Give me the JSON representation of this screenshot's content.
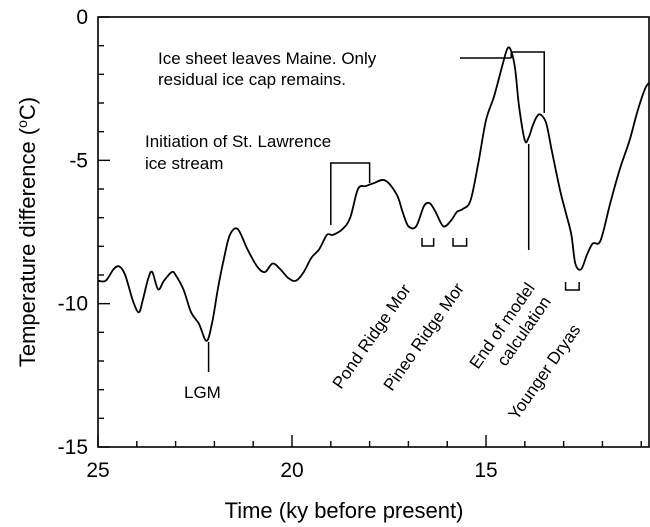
{
  "chart_data": {
    "type": "line",
    "xlabel": "Time (ky before present)",
    "ylabel_main": "Temperature difference (",
    "ylabel_sup": "o",
    "ylabel_tail": "C)",
    "xlim": [
      25,
      10.8
    ],
    "ylim": [
      -15,
      0
    ],
    "xticks": [
      {
        "value": 25,
        "label": "25"
      },
      {
        "value": 20,
        "label": "20"
      },
      {
        "value": 15,
        "label": "15"
      }
    ],
    "yticks": [
      {
        "value": 0,
        "label": "0"
      },
      {
        "value": -5,
        "label": "-5"
      },
      {
        "value": -10,
        "label": "-10"
      },
      {
        "value": -15,
        "label": "-15"
      }
    ],
    "series": [
      {
        "color": "#000000",
        "x": [
          25.0,
          24.8,
          24.6,
          24.45,
          24.3,
          24.1,
          23.95,
          23.85,
          23.7,
          23.6,
          23.45,
          23.3,
          23.1,
          23.0,
          22.8,
          22.6,
          22.4,
          22.2,
          22.05,
          21.9,
          21.75,
          21.6,
          21.4,
          21.15,
          20.9,
          20.7,
          20.5,
          20.3,
          20.1,
          19.9,
          19.7,
          19.5,
          19.3,
          19.1,
          18.95,
          18.7,
          18.5,
          18.3,
          18.1,
          17.9,
          17.6,
          17.3,
          17.15,
          17.0,
          16.8,
          16.6,
          16.45,
          16.3,
          16.1,
          15.9,
          15.75,
          15.6,
          15.4,
          15.2,
          15.0,
          14.8,
          14.6,
          14.45,
          14.35,
          14.25,
          14.15,
          14.0,
          13.9,
          13.8,
          13.7,
          13.6,
          13.45,
          13.3,
          13.1,
          12.95,
          12.8,
          12.7,
          12.55,
          12.4,
          12.25,
          12.05,
          11.8,
          11.55,
          11.3,
          11.1,
          10.9,
          10.8
        ],
        "y": [
          -9.2,
          -9.2,
          -8.8,
          -8.7,
          -9.0,
          -9.9,
          -10.3,
          -9.9,
          -9.1,
          -8.9,
          -9.5,
          -9.2,
          -8.9,
          -9.0,
          -9.5,
          -10.3,
          -10.7,
          -11.3,
          -10.6,
          -9.4,
          -8.4,
          -7.6,
          -7.4,
          -8.1,
          -8.7,
          -8.9,
          -8.6,
          -8.8,
          -9.1,
          -9.2,
          -8.9,
          -8.4,
          -8.1,
          -7.6,
          -7.6,
          -7.4,
          -7.0,
          -6.0,
          -5.9,
          -5.8,
          -5.7,
          -6.2,
          -6.8,
          -7.3,
          -7.3,
          -6.6,
          -6.5,
          -6.8,
          -7.3,
          -7.1,
          -6.8,
          -6.7,
          -6.4,
          -5.1,
          -3.6,
          -2.8,
          -1.8,
          -1.1,
          -1.2,
          -1.8,
          -3.1,
          -4.3,
          -4.2,
          -3.8,
          -3.5,
          -3.4,
          -3.7,
          -4.7,
          -6.0,
          -6.8,
          -7.6,
          -8.6,
          -8.8,
          -8.3,
          -7.9,
          -7.8,
          -6.5,
          -5.3,
          -4.3,
          -3.3,
          -2.5,
          -2.3
        ]
      }
    ],
    "annotations": [
      {
        "text_lines": [
          "Ice sheet leaves Maine. Only",
          "residual ice cap remains."
        ],
        "marker": "bracket",
        "from_x": 14.35,
        "to_x": 13.5
      },
      {
        "text_lines": [
          "Initiation of St. Lawrence",
          "ice stream"
        ],
        "marker": "bracket",
        "from_x": 19.0,
        "to_x": 18.0
      },
      {
        "text_lines": [
          "LGM"
        ],
        "marker": "line",
        "at_x": 22.15
      },
      {
        "text_lines": [
          "Pond Ridge Mor"
        ],
        "marker": "bracket",
        "from_x": 16.65,
        "to_x": 16.35,
        "rotated": true
      },
      {
        "text_lines": [
          "Pineo Ridge Mor"
        ],
        "marker": "bracket",
        "from_x": 15.85,
        "to_x": 15.5,
        "rotated": true
      },
      {
        "text_lines": [
          "End of model",
          "calculation"
        ],
        "marker": "line",
        "at_x": 13.9,
        "rotated": true
      },
      {
        "text_lines": [
          "Younger Dryas"
        ],
        "marker": "bracket",
        "from_x": 12.95,
        "to_x": 12.6,
        "rotated": true
      }
    ]
  }
}
